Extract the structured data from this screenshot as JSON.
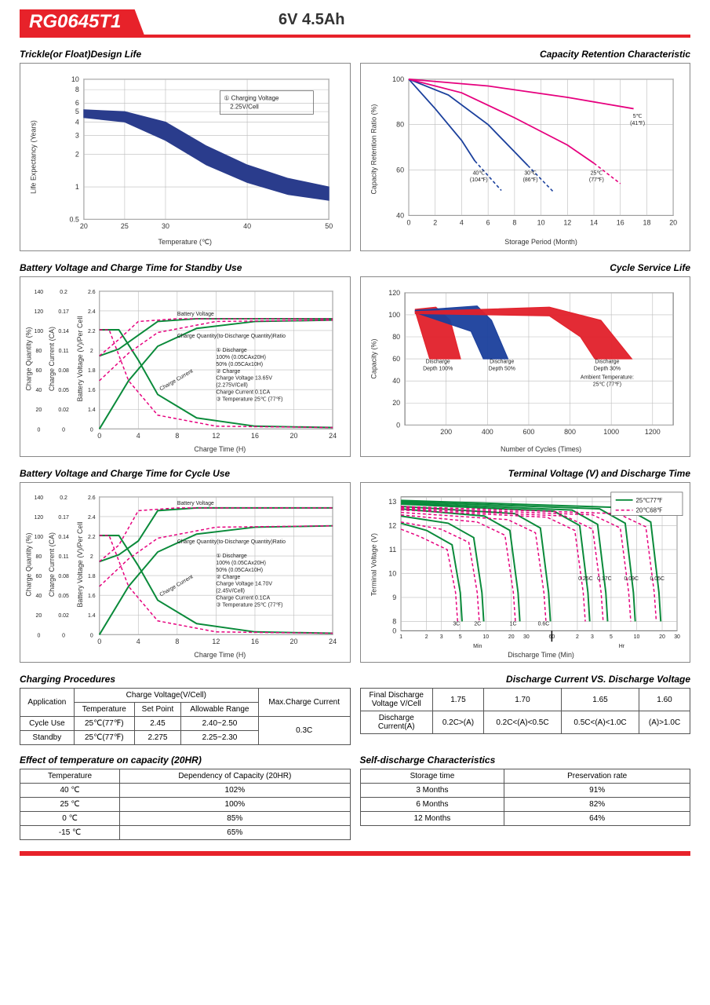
{
  "header": {
    "model": "RG0645T1",
    "spec": "6V 4.5Ah"
  },
  "charts": {
    "trickle": {
      "title": "Trickle(or Float)Design Life",
      "xlabel": "Temperature (℃)",
      "ylabel": "Life Expectancy (Years)",
      "xticks": [
        20,
        25,
        30,
        40,
        50
      ],
      "yticks": [
        0.5,
        1,
        2,
        3,
        4,
        5,
        6,
        8,
        10
      ],
      "note": "① Charging Voltage\n  2.25V/Cell",
      "band_upper": [
        [
          20,
          5.2
        ],
        [
          25,
          5.0
        ],
        [
          30,
          4.0
        ],
        [
          35,
          2.4
        ],
        [
          40,
          1.6
        ],
        [
          45,
          1.2
        ],
        [
          50,
          1.0
        ]
      ],
      "band_lower": [
        [
          20,
          4.4
        ],
        [
          25,
          4.0
        ],
        [
          30,
          2.7
        ],
        [
          35,
          1.6
        ],
        [
          40,
          1.1
        ],
        [
          45,
          0.85
        ],
        [
          50,
          0.75
        ]
      ],
      "colors": {
        "band": "#2a3c8c",
        "grid": "#bbb"
      }
    },
    "capacity_retention": {
      "title": "Capacity Retention Characteristic",
      "xlabel": "Storage Period (Month)",
      "ylabel": "Capacity Retention Ratio (%)",
      "xticks": [
        0,
        2,
        4,
        6,
        8,
        10,
        12,
        14,
        16,
        18,
        20
      ],
      "yticks": [
        40,
        60,
        80,
        100
      ],
      "curves": {
        "40C": {
          "label": "40℃\n(104℉)",
          "color": "#1a3f9c",
          "solid": [
            [
              0,
              100
            ],
            [
              2,
              87
            ],
            [
              4,
              73
            ],
            [
              5,
              64
            ]
          ],
          "dash": [
            [
              5,
              64
            ],
            [
              7,
              51
            ]
          ]
        },
        "30C": {
          "label": "30℃\n(86℉)",
          "color": "#1a3f9c",
          "solid": [
            [
              0,
              100
            ],
            [
              3,
              93
            ],
            [
              6,
              80
            ],
            [
              8,
              68
            ],
            [
              9,
              62
            ]
          ],
          "dash": [
            [
              9,
              62
            ],
            [
              11,
              50
            ]
          ]
        },
        "25C": {
          "label": "25℃\n(77℉)",
          "color": "#e6007e",
          "solid": [
            [
              0,
              100
            ],
            [
              4,
              94
            ],
            [
              8,
              83
            ],
            [
              12,
              71
            ],
            [
              14,
              63
            ]
          ],
          "dash": [
            [
              14,
              63
            ],
            [
              16,
              54
            ]
          ]
        },
        "5C": {
          "label": "5℃\n(41℉)",
          "color": "#e6007e",
          "solid": [
            [
              0,
              100
            ],
            [
              6,
              97
            ],
            [
              12,
              92
            ],
            [
              17,
              87
            ]
          ]
        }
      }
    },
    "standby": {
      "title": "Battery Voltage and Charge Time for Standby Use",
      "xlabel": "Charge Time (H)",
      "y1label": "Charge Quantity (%)",
      "y2label": "Charge Current (CA)",
      "y3label": "Battery Voltage (V)/Per Cell",
      "xticks": [
        0,
        4,
        8,
        12,
        16,
        20,
        24
      ],
      "y1ticks": [
        0,
        20,
        40,
        60,
        80,
        100,
        120,
        140
      ],
      "y2ticks": [
        0,
        0.02,
        0.05,
        0.08,
        0.11,
        0.14,
        0.17,
        0.2
      ],
      "y3ticks": [
        0,
        1.4,
        1.6,
        1.8,
        2.0,
        2.2,
        2.4,
        2.6
      ],
      "legend": [
        "① Discharge",
        "  100% (0.05CAx20H)",
        "  50% (0.05CAx10H)",
        "② Charge",
        "  Charge Voltage 13.65V",
        "  (2.275V/Cell)",
        "  Charge Current 0.1CA",
        "③ Temperature 25℃ (77℉)"
      ],
      "colors": {
        "solid": "#0a8a3a",
        "dash": "#e6007e"
      }
    },
    "cycle_service": {
      "title": "Cycle Service Life",
      "xlabel": "Number of Cycles (Times)",
      "ylabel": "Capacity (%)",
      "xticks": [
        200,
        400,
        600,
        800,
        1000,
        1200
      ],
      "yticks": [
        0,
        20,
        40,
        60,
        80,
        100,
        120
      ],
      "bands": [
        {
          "label": "Discharge\nDepth 100%",
          "color": "#e2202a",
          "upper": [
            [
              50,
              105
            ],
            [
              150,
              107
            ],
            [
              220,
              95
            ],
            [
              270,
              60
            ]
          ],
          "lower": [
            [
              50,
              103
            ],
            [
              120,
              60
            ]
          ]
        },
        {
          "label": "Discharge\nDepth 50%",
          "color": "#1a3f9c",
          "upper": [
            [
              50,
              104
            ],
            [
              350,
              108
            ],
            [
              420,
              95
            ],
            [
              500,
              60
            ]
          ],
          "lower": [
            [
              50,
              102
            ],
            [
              320,
              85
            ],
            [
              380,
              60
            ]
          ]
        },
        {
          "label": "Discharge\nDepth 30%",
          "color": "#e2202a",
          "upper": [
            [
              50,
              103
            ],
            [
              700,
              107
            ],
            [
              950,
              95
            ],
            [
              1100,
              60
            ]
          ],
          "lower": [
            [
              50,
              101
            ],
            [
              700,
              99
            ],
            [
              850,
              80
            ],
            [
              920,
              60
            ]
          ]
        }
      ],
      "note": "Ambient Temperature:\n25℃ (77℉)"
    },
    "cycle_use": {
      "title": "Battery Voltage and Charge Time for Cycle Use",
      "xlabel": "Charge Time (H)",
      "legend": [
        "① Discharge",
        "  100% (0.05CAx20H)",
        "  50% (0.05CAx10H)",
        "② Charge",
        "  Charge Voltage 14.70V",
        "  (2.45V/Cell)",
        "  Charge Current 0.1CA",
        "③ Temperature 25℃ (77℉)"
      ]
    },
    "terminal": {
      "title": "Terminal Voltage (V) and Discharge Time",
      "xlabel": "Discharge Time (Min)",
      "ylabel": "Terminal Voltage (V)",
      "yticks": [
        0,
        8,
        9,
        10,
        11,
        12,
        13
      ],
      "xsections": {
        "min": [
          1,
          2,
          3,
          5,
          10,
          20,
          30,
          60
        ],
        "hr": [
          2,
          3,
          5,
          10,
          20,
          30
        ]
      },
      "legend": [
        {
          "label": "25℃77℉",
          "color": "#0a8a3a"
        },
        {
          "label": "20℃68℉",
          "color": "#e6007e"
        }
      ],
      "clabels": [
        "3C",
        "2C",
        "1C",
        "0.6C",
        "0.25C",
        "0.17C",
        "0.09C",
        "0.05C"
      ]
    }
  },
  "tables": {
    "charging_procedures": {
      "title": "Charging Procedures",
      "headers1": [
        "Application",
        "Charge Voltage(V/Cell)",
        "Max.Charge Current"
      ],
      "headers2": [
        "Temperature",
        "Set Point",
        "Allowable Range"
      ],
      "rows": [
        [
          "Cycle Use",
          "25℃(77℉)",
          "2.45",
          "2.40~2.50"
        ],
        [
          "Standby",
          "25℃(77℉)",
          "2.275",
          "2.25~2.30"
        ]
      ],
      "max_current": "0.3C"
    },
    "discharge_voltage": {
      "title": "Discharge Current VS. Discharge Voltage",
      "r1": [
        "Final Discharge\nVoltage V/Cell",
        "1.75",
        "1.70",
        "1.65",
        "1.60"
      ],
      "r2": [
        "Discharge\nCurrent(A)",
        "0.2C>(A)",
        "0.2C<(A)<0.5C",
        "0.5C<(A)<1.0C",
        "(A)>1.0C"
      ]
    },
    "temp_capacity": {
      "title": "Effect of temperature on capacity (20HR)",
      "headers": [
        "Temperature",
        "Dependency of Capacity (20HR)"
      ],
      "rows": [
        [
          "40 ℃",
          "102%"
        ],
        [
          "25 ℃",
          "100%"
        ],
        [
          "0 ℃",
          "85%"
        ],
        [
          "-15 ℃",
          "65%"
        ]
      ]
    },
    "self_discharge": {
      "title": "Self-discharge Characteristics",
      "headers": [
        "Storage time",
        "Preservation rate"
      ],
      "rows": [
        [
          "3 Months",
          "91%"
        ],
        [
          "6 Months",
          "82%"
        ],
        [
          "12 Months",
          "64%"
        ]
      ]
    }
  }
}
